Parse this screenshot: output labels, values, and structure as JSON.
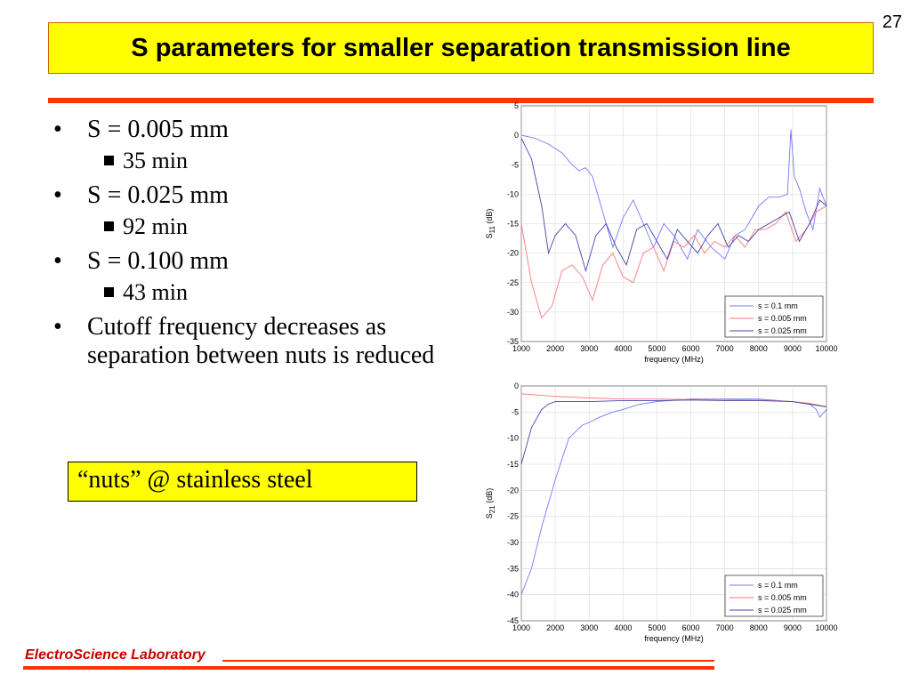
{
  "page_number": "27",
  "title": "S parameters for smaller separation transmission line",
  "bullets": [
    {
      "text": "S = 0.005 mm",
      "sub": "35 min"
    },
    {
      "text": "S = 0.025 mm",
      "sub": "92 min"
    },
    {
      "text": "S = 0.100 mm",
      "sub": "43 min"
    },
    {
      "text": "Cutoff frequency decreases as separation between nuts is reduced",
      "sub": ""
    }
  ],
  "bullet_char": "•",
  "note": "“nuts” @ stainless steel",
  "footer": "ElectroScience Laboratory",
  "colors": {
    "title_bg": "#ffff00",
    "rule": "#ff3300",
    "footer_text": "#cc0000"
  },
  "chart_data": [
    {
      "type": "line",
      "xlabel": "frequency (MHz)",
      "ylabel_main": "S",
      "ylabel_sub": "11",
      "ylabel_unit": "(dB)",
      "xlim": [
        1000,
        10000
      ],
      "ylim": [
        -35,
        5
      ],
      "xticks": [
        1000,
        2000,
        3000,
        4000,
        5000,
        6000,
        7000,
        8000,
        9000,
        10000
      ],
      "yticks": [
        5,
        0,
        -5,
        -10,
        -15,
        -20,
        -25,
        -30,
        -35
      ],
      "grid": true,
      "legend_position": "bottom-right",
      "series": [
        {
          "name": "s = 0.1 mm",
          "color": "#7777ff",
          "x": [
            1000,
            1400,
            1800,
            2200,
            2500,
            2700,
            2900,
            3100,
            3400,
            3700,
            4000,
            4300,
            4600,
            4900,
            5200,
            5500,
            5900,
            6200,
            6600,
            7000,
            7300,
            7600,
            8000,
            8300,
            8600,
            8850,
            8950,
            9050,
            9200,
            9400,
            9600,
            9800,
            10000
          ],
          "y": [
            0,
            -0.5,
            -1.5,
            -3,
            -5,
            -6,
            -5.5,
            -7,
            -13,
            -19,
            -14,
            -11,
            -15,
            -19,
            -15,
            -17,
            -21,
            -16,
            -19,
            -21,
            -17,
            -16,
            -12,
            -10.5,
            -10.5,
            -10,
            1,
            -7,
            -9,
            -13,
            -16,
            -9,
            -12
          ]
        },
        {
          "name": "s = 0.005 mm",
          "color": "#ff7777",
          "x": [
            1000,
            1300,
            1600,
            1900,
            2200,
            2500,
            2800,
            3100,
            3400,
            3700,
            4000,
            4300,
            4600,
            4900,
            5200,
            5500,
            5800,
            6100,
            6400,
            6700,
            7000,
            7300,
            7600,
            7900,
            8200,
            8500,
            8800,
            9100,
            9400,
            9700,
            10000
          ],
          "y": [
            -15,
            -25,
            -31,
            -29,
            -23,
            -22,
            -24,
            -28,
            -22,
            -20,
            -24,
            -25,
            -20,
            -19,
            -23,
            -18,
            -19,
            -17,
            -20,
            -18,
            -19,
            -17,
            -19,
            -16,
            -16,
            -15,
            -13,
            -18,
            -16,
            -13,
            -12
          ]
        },
        {
          "name": "s = 0.025 mm",
          "color": "#4444aa",
          "x": [
            1000,
            1300,
            1600,
            1800,
            2000,
            2300,
            2600,
            2900,
            3200,
            3500,
            3800,
            4100,
            4400,
            4700,
            5000,
            5300,
            5600,
            5900,
            6200,
            6500,
            6800,
            7100,
            7400,
            7700,
            8000,
            8300,
            8600,
            8900,
            9200,
            9500,
            9800,
            10000
          ],
          "y": [
            -0.5,
            -4,
            -12,
            -20,
            -17,
            -15,
            -17,
            -23,
            -17,
            -15,
            -19,
            -22,
            -16,
            -15,
            -18,
            -21,
            -16,
            -18,
            -20,
            -17,
            -15,
            -19,
            -17,
            -18,
            -16,
            -15,
            -14,
            -13,
            -18,
            -15,
            -11,
            -12
          ]
        }
      ]
    },
    {
      "type": "line",
      "xlabel": "frequency (MHz)",
      "ylabel_main": "S",
      "ylabel_sub": "21",
      "ylabel_unit": "(dB)",
      "xlim": [
        1000,
        10000
      ],
      "ylim": [
        -45,
        0
      ],
      "xticks": [
        1000,
        2000,
        3000,
        4000,
        5000,
        6000,
        7000,
        8000,
        9000,
        10000
      ],
      "yticks": [
        0,
        -5,
        -10,
        -15,
        -20,
        -25,
        -30,
        -35,
        -40,
        -45
      ],
      "grid": true,
      "legend_position": "bottom-right",
      "series": [
        {
          "name": "s = 0.1 mm",
          "color": "#7777ff",
          "x": [
            1000,
            1300,
            1600,
            2000,
            2400,
            2800,
            3000,
            3300,
            3700,
            4000,
            4500,
            5000,
            6000,
            7000,
            8000,
            9000,
            9500,
            9700,
            9800,
            10000
          ],
          "y": [
            -40,
            -35,
            -27,
            -18,
            -10,
            -7.5,
            -7,
            -6,
            -5,
            -4.5,
            -3.5,
            -3,
            -2.5,
            -2.5,
            -2.5,
            -3,
            -3.5,
            -4.5,
            -6,
            -4.5
          ]
        },
        {
          "name": "s = 0.005 mm",
          "color": "#ff7777",
          "x": [
            1000,
            2000,
            3000,
            4000,
            5000,
            6000,
            7000,
            8000,
            9000,
            9500,
            10000
          ],
          "y": [
            -1.5,
            -2,
            -2.3,
            -2.5,
            -2.5,
            -2.6,
            -2.6,
            -2.7,
            -3,
            -3.3,
            -4
          ]
        },
        {
          "name": "s = 0.025 mm",
          "color": "#4444aa",
          "x": [
            1000,
            1300,
            1600,
            1800,
            2000,
            2500,
            3000,
            4000,
            5000,
            6000,
            7000,
            8000,
            9000,
            9500,
            10000
          ],
          "y": [
            -15,
            -8,
            -4.5,
            -3.5,
            -3,
            -3,
            -3,
            -2.8,
            -2.8,
            -2.7,
            -2.8,
            -2.8,
            -3,
            -3.5,
            -4
          ]
        }
      ]
    }
  ]
}
